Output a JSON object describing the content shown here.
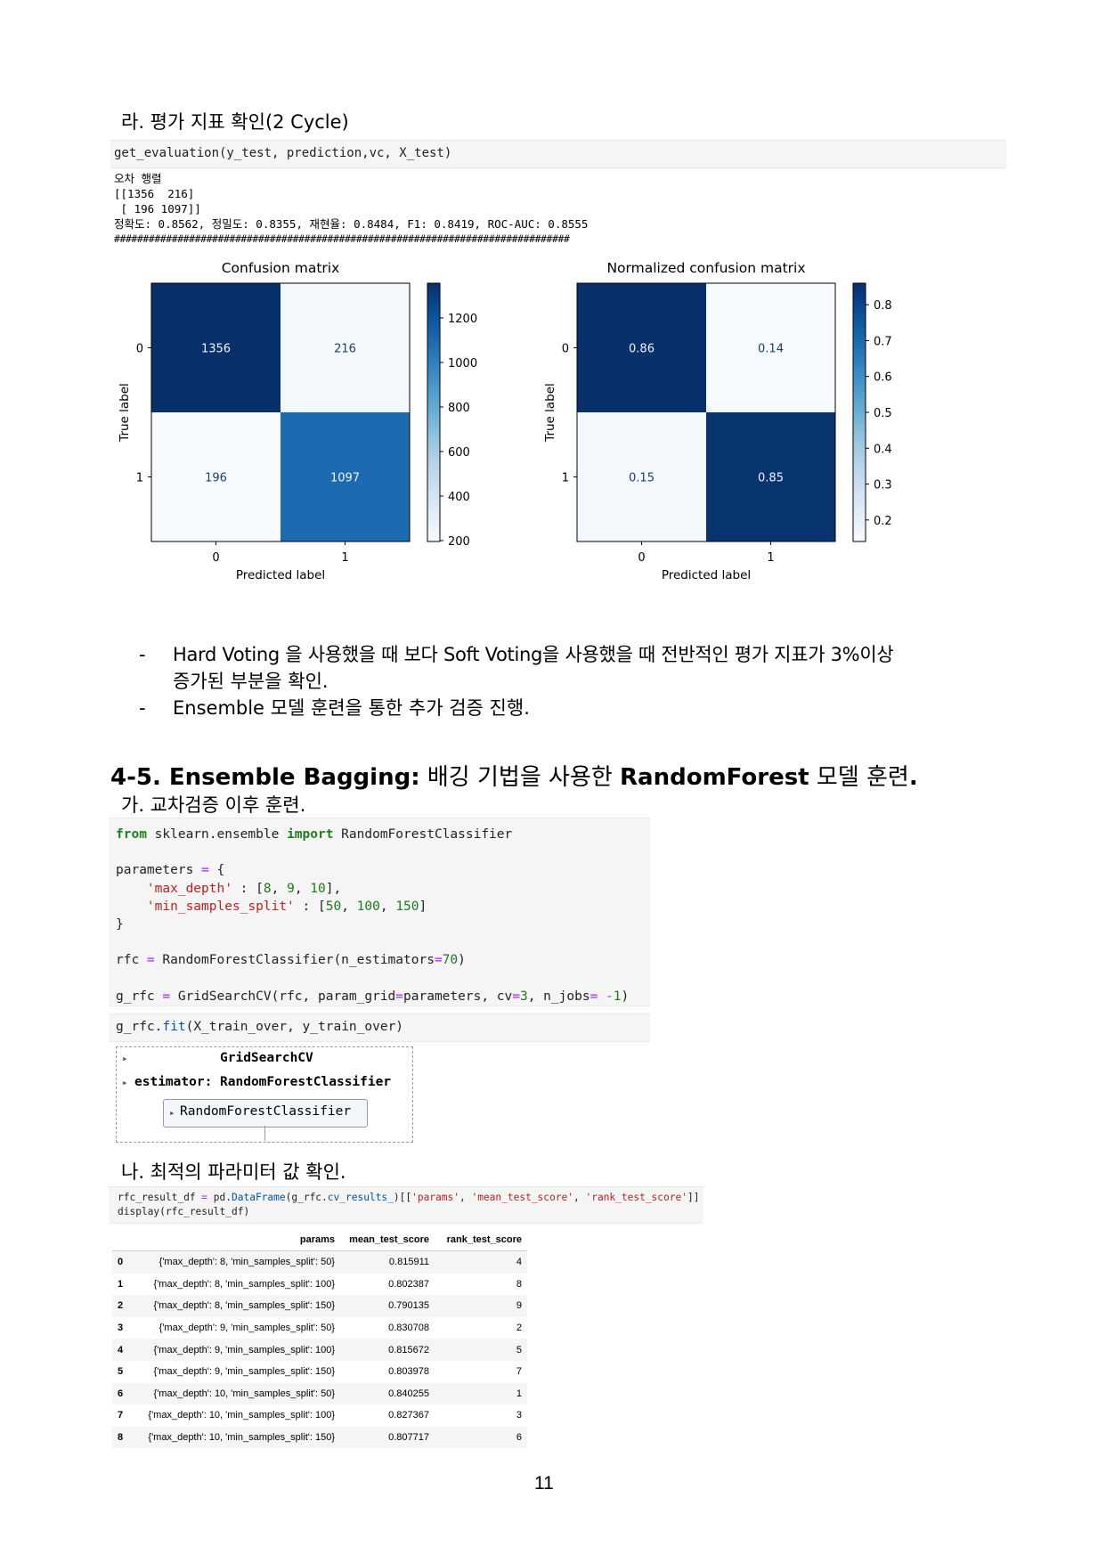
{
  "section_ra_title": "라. 평가 지표 확인(2 Cycle)",
  "eval_call": "get_evaluation(y_test, prediction,vc, X_test)",
  "eval_output": {
    "line1": "오차 행렬",
    "line2": "[[1356  216]",
    "line3": " [ 196 1097]]",
    "line4": "정확도: 0.8562, 정밀도: 0.8355, 재현율: 0.8484, F1: 0.8419, ROC-AUC: 0.8555",
    "line5": "###############################################################################"
  },
  "chart_data": [
    {
      "type": "heatmap",
      "title": "Confusion matrix",
      "xlabel": "Predicted label",
      "ylabel": "True label",
      "x_ticks": [
        "0",
        "1"
      ],
      "y_ticks": [
        "0",
        "1"
      ],
      "values": [
        [
          1356,
          216
        ],
        [
          196,
          1097
        ]
      ],
      "cell_labels": [
        [
          "1356",
          "216"
        ],
        [
          "196",
          "1097"
        ]
      ],
      "colorbar_ticks": [
        "1200",
        "1000",
        "800",
        "600",
        "400",
        "200"
      ],
      "colorbar_values": [
        1200,
        1000,
        800,
        600,
        400,
        200
      ],
      "colorbar_range": [
        196,
        1356
      ],
      "colormap": "Blues"
    },
    {
      "type": "heatmap",
      "title": "Normalized confusion matrix",
      "xlabel": "Predicted label",
      "ylabel": "True label",
      "x_ticks": [
        "0",
        "1"
      ],
      "y_ticks": [
        "0",
        "1"
      ],
      "values": [
        [
          0.86,
          0.14
        ],
        [
          0.15,
          0.85
        ]
      ],
      "cell_labels": [
        [
          "0.86",
          "0.14"
        ],
        [
          "0.15",
          "0.85"
        ]
      ],
      "colorbar_ticks": [
        "0.8",
        "0.7",
        "0.6",
        "0.5",
        "0.4",
        "0.3",
        "0.2"
      ],
      "colorbar_values": [
        0.8,
        0.7,
        0.6,
        0.5,
        0.4,
        0.3,
        0.2
      ],
      "colorbar_range": [
        0.14,
        0.86
      ],
      "colormap": "Blues"
    }
  ],
  "bullets": [
    {
      "dash": "-",
      "line1": "Hard Voting 을 사용했을 때 보다 Soft Voting을 사용했을 때 전반적인 평가 지표가 3%이상",
      "line2": "증가된 부분을 확인."
    },
    {
      "dash": "-",
      "line1": "Ensemble 모델 훈련을 통한 추가 검증 진행.",
      "line2": ""
    }
  ],
  "section_45": {
    "title_bold1": "4-5. Ensemble Bagging:",
    "title_normal": " 배깅 기법을 사용한 ",
    "title_bold2": "RandomForest",
    "title_normal2": " 모델 훈련",
    "title_end": "."
  },
  "section_ga_title": "가. 교차검증 이후 훈련.",
  "code1": {
    "l1_kw1": "from",
    "l1_mod": " sklearn.ensemble ",
    "l1_kw2": "import",
    "l1_cls": " RandomForestClassifier",
    "l3a": "parameters ",
    "l3op": "=",
    "l3b": " {",
    "l4str": "    'max_depth'",
    "l4a": " : [",
    "l4n1": "8",
    "l4c1": ", ",
    "l4n2": "9",
    "l4c2": ", ",
    "l4n3": "10",
    "l4end": "],",
    "l5str": "    'min_samples_split'",
    "l5a": " : [",
    "l5n1": "50",
    "l5c1": ", ",
    "l5n2": "100",
    "l5c2": ", ",
    "l5n3": "150",
    "l5end": "]",
    "l6": "}",
    "l8a": "rfc ",
    "l8op": "=",
    "l8b": " RandomForestClassifier(n_estimators",
    "l8op2": "=",
    "l8n": "70",
    "l8end": ")",
    "l10a": "g_rfc ",
    "l10op": "=",
    "l10b": " GridSearchCV(rfc, param_grid",
    "l10op2": "=",
    "l10c": "parameters, cv",
    "l10op3": "=",
    "l10n1": "3",
    "l10d": ", n_jobs",
    "l10op4": "=",
    "l10e": " ",
    "l10op5": "-",
    "l10n2": "1",
    "l10end": ")"
  },
  "code2": {
    "a": "g_rfc.",
    "fn": "fit",
    "b": "(X_train_over, y_train_over)"
  },
  "estimator_widget": {
    "arrow": "▸",
    "title": "GridSearchCV",
    "estimator_label": "estimator: RandomForestClassifier",
    "inner_label": "RandomForestClassifier"
  },
  "section_na_title": "나. 최적의 파라미터 값 확인.",
  "code3": {
    "l1a": "rfc_result_df ",
    "l1op": "=",
    "l1b": " pd.",
    "l1fn": "DataFrame",
    "l1c": "(g_rfc.",
    "l1attr": "cv_results_",
    "l1d": ")[[",
    "l1s1": "'params'",
    "l1e": ", ",
    "l1s2": "'mean_test_score'",
    "l1f": ", ",
    "l1s3": "'rank_test_score'",
    "l1g": "]]",
    "l2": "display(rfc_result_df)"
  },
  "result_table": {
    "columns": [
      "",
      "params",
      "mean_test_score",
      "rank_test_score"
    ],
    "rows": [
      [
        "0",
        "{'max_depth': 8, 'min_samples_split': 50}",
        "0.815911",
        "4"
      ],
      [
        "1",
        "{'max_depth': 8, 'min_samples_split': 100}",
        "0.802387",
        "8"
      ],
      [
        "2",
        "{'max_depth': 8, 'min_samples_split': 150}",
        "0.790135",
        "9"
      ],
      [
        "3",
        "{'max_depth': 9, 'min_samples_split': 50}",
        "0.830708",
        "2"
      ],
      [
        "4",
        "{'max_depth': 9, 'min_samples_split': 100}",
        "0.815672",
        "5"
      ],
      [
        "5",
        "{'max_depth': 9, 'min_samples_split': 150}",
        "0.803978",
        "7"
      ],
      [
        "6",
        "{'max_depth': 10, 'min_samples_split': 50}",
        "0.840255",
        "1"
      ],
      [
        "7",
        "{'max_depth': 10, 'min_samples_split': 100}",
        "0.827367",
        "3"
      ],
      [
        "8",
        "{'max_depth': 10, 'min_samples_split': 150}",
        "0.807717",
        "6"
      ]
    ]
  },
  "page_number": "11"
}
